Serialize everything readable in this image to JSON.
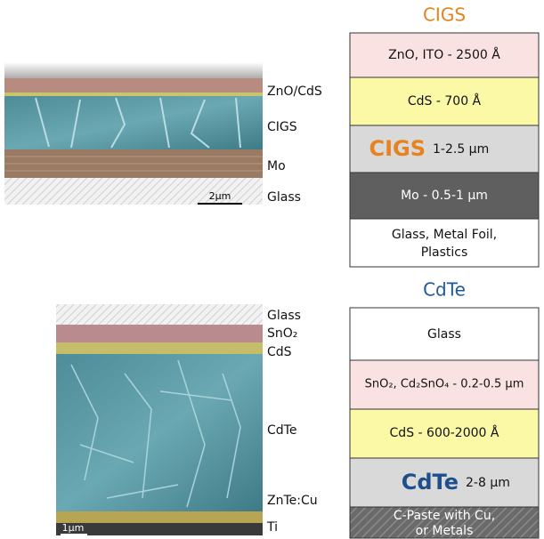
{
  "cigs": {
    "title": "CIGS",
    "micrograph_labels": [
      "ZnO/CdS",
      "CIGS",
      "Mo",
      "Glass"
    ],
    "scale_bar": "2µm",
    "layers": [
      {
        "text": "ZnO, ITO - 2500 Å"
      },
      {
        "text": "CdS - 700 Å"
      },
      {
        "text": "CIGS",
        "thickness": "1-2.5 µm"
      },
      {
        "text": "Mo - 0.5-1 µm"
      },
      {
        "lines": [
          "Glass, Metal Foil,",
          "Plastics"
        ]
      }
    ]
  },
  "cdte": {
    "title": "CdTe",
    "micrograph_labels": [
      "Glass",
      "SnO₂",
      "CdS",
      "CdTe",
      "ZnTe:Cu",
      "Ti"
    ],
    "scale_bar": "1µm",
    "layers": [
      {
        "text": "Glass"
      },
      {
        "text": "SnO₂, Cd₂SnO₄ - 0.2-0.5 µm"
      },
      {
        "text": "CdS - 600-2000 Å"
      },
      {
        "text": "CdTe",
        "thickness": "2-8 µm"
      },
      {
        "lines": [
          "C-Paste with Cu,",
          "or Metals"
        ]
      }
    ]
  }
}
